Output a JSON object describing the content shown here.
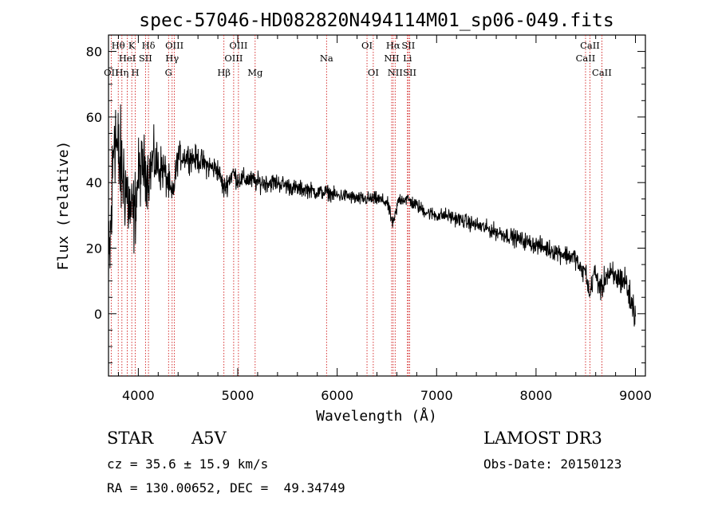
{
  "chart_data": {
    "type": "line",
    "title": "spec-57046-HD082820N494114M01_sp06-049.fits",
    "xlabel": "Wavelength (Å)",
    "ylabel": "Flux (relative)",
    "xlim": [
      3700,
      9100
    ],
    "ylim": [
      -19,
      85
    ],
    "xticks": [
      4000,
      5000,
      6000,
      7000,
      8000,
      9000
    ],
    "xtick_labels": [
      "4000",
      "5000",
      "6000",
      "7000",
      "8000",
      "9000"
    ],
    "yticks": [
      0,
      20,
      40,
      60,
      80
    ],
    "ytick_labels": [
      "0",
      "20",
      "40",
      "60",
      "80"
    ],
    "continuum": [
      [
        3700,
        8
      ],
      [
        3730,
        30
      ],
      [
        3760,
        60
      ],
      [
        3790,
        48
      ],
      [
        3830,
        44
      ],
      [
        3870,
        40
      ],
      [
        3900,
        34
      ],
      [
        3930,
        30
      ],
      [
        3960,
        30
      ],
      [
        4000,
        42
      ],
      [
        4050,
        45
      ],
      [
        4100,
        42
      ],
      [
        4150,
        47
      ],
      [
        4200,
        45
      ],
      [
        4250,
        44
      ],
      [
        4300,
        40
      ],
      [
        4340,
        35
      ],
      [
        4400,
        48
      ],
      [
        4500,
        48
      ],
      [
        4600,
        47
      ],
      [
        4700,
        45
      ],
      [
        4800,
        44
      ],
      [
        4860,
        38
      ],
      [
        4950,
        43
      ],
      [
        5000,
        41
      ],
      [
        5100,
        41
      ],
      [
        5200,
        40
      ],
      [
        5300,
        40
      ],
      [
        5400,
        40
      ],
      [
        5500,
        39
      ],
      [
        5600,
        38
      ],
      [
        5700,
        38
      ],
      [
        5800,
        37
      ],
      [
        5900,
        37
      ],
      [
        6000,
        36
      ],
      [
        6100,
        36
      ],
      [
        6200,
        35
      ],
      [
        6300,
        35
      ],
      [
        6400,
        35
      ],
      [
        6500,
        34
      ],
      [
        6563,
        27
      ],
      [
        6620,
        35
      ],
      [
        6700,
        35
      ],
      [
        6800,
        33
      ],
      [
        6900,
        31
      ],
      [
        7000,
        30
      ],
      [
        7100,
        30
      ],
      [
        7200,
        29
      ],
      [
        7300,
        28
      ],
      [
        7400,
        27
      ],
      [
        7500,
        26
      ],
      [
        7600,
        25
      ],
      [
        7700,
        24
      ],
      [
        7800,
        23
      ],
      [
        7900,
        22
      ],
      [
        8000,
        21
      ],
      [
        8100,
        20
      ],
      [
        8200,
        19
      ],
      [
        8300,
        18
      ],
      [
        8400,
        17
      ],
      [
        8450,
        13
      ],
      [
        8500,
        13
      ],
      [
        8540,
        5
      ],
      [
        8580,
        13
      ],
      [
        8620,
        10
      ],
      [
        8662,
        7
      ],
      [
        8700,
        12
      ],
      [
        8800,
        11
      ],
      [
        8900,
        10
      ],
      [
        8950,
        4
      ],
      [
        9000,
        0
      ]
    ],
    "noise": [
      [
        3700,
        20
      ],
      [
        4000,
        10
      ],
      [
        4400,
        4
      ],
      [
        5000,
        3
      ],
      [
        6000,
        2
      ],
      [
        7000,
        2
      ],
      [
        8000,
        2.5
      ],
      [
        8500,
        3
      ],
      [
        9000,
        5
      ]
    ],
    "n_points": 1700,
    "spectral_lines": [
      {
        "label": "OII",
        "wavelength": 3727,
        "row": 3
      },
      {
        "label": "Hθ",
        "wavelength": 3798,
        "row": 1
      },
      {
        "label": "Hη",
        "wavelength": 3835,
        "row": 3
      },
      {
        "label": "HeI",
        "wavelength": 3889,
        "row": 2
      },
      {
        "label": "K",
        "wavelength": 3934,
        "row": 1
      },
      {
        "label": "H",
        "wavelength": 3969,
        "row": 3
      },
      {
        "label": "SII",
        "wavelength": 4072,
        "row": 2
      },
      {
        "label": "Hδ",
        "wavelength": 4102,
        "row": 1
      },
      {
        "label": "G",
        "wavelength": 4304,
        "row": 3
      },
      {
        "label": "Hγ",
        "wavelength": 4340,
        "row": 2
      },
      {
        "label": "OIII",
        "wavelength": 4363,
        "row": 1
      },
      {
        "label": "Hβ",
        "wavelength": 4861,
        "row": 3
      },
      {
        "label": "OIII",
        "wavelength": 4959,
        "row": 2
      },
      {
        "label": "OIII",
        "wavelength": 5007,
        "row": 1
      },
      {
        "label": "Mg",
        "wavelength": 5175,
        "row": 3
      },
      {
        "label": "Na",
        "wavelength": 5893,
        "row": 2
      },
      {
        "label": "OI",
        "wavelength": 6300,
        "row": 1
      },
      {
        "label": "OI",
        "wavelength": 6363,
        "row": 3
      },
      {
        "label": "NII",
        "wavelength": 6548,
        "row": 2
      },
      {
        "label": "Hα",
        "wavelength": 6563,
        "row": 1
      },
      {
        "label": "NII",
        "wavelength": 6583,
        "row": 3
      },
      {
        "label": "Li",
        "wavelength": 6707,
        "row": 2
      },
      {
        "label": "SII",
        "wavelength": 6716,
        "row": 1
      },
      {
        "label": "SII",
        "wavelength": 6730,
        "row": 3
      },
      {
        "label": "CaII",
        "wavelength": 8498,
        "row": 2
      },
      {
        "label": "CaII",
        "wavelength": 8542,
        "row": 1
      },
      {
        "label": "CaII",
        "wavelength": 8662,
        "row": 3
      }
    ],
    "line_color": "#cc0000",
    "data_color": "#000000"
  },
  "info": {
    "object_class": "STAR",
    "subclass": "A5V",
    "survey": "LAMOST DR3",
    "redshift": "cz = 35.6 ± 15.9 km/s",
    "obs_date": "Obs-Date: 20150123",
    "coords": "RA = 130.00652, DEC =  49.34749"
  }
}
